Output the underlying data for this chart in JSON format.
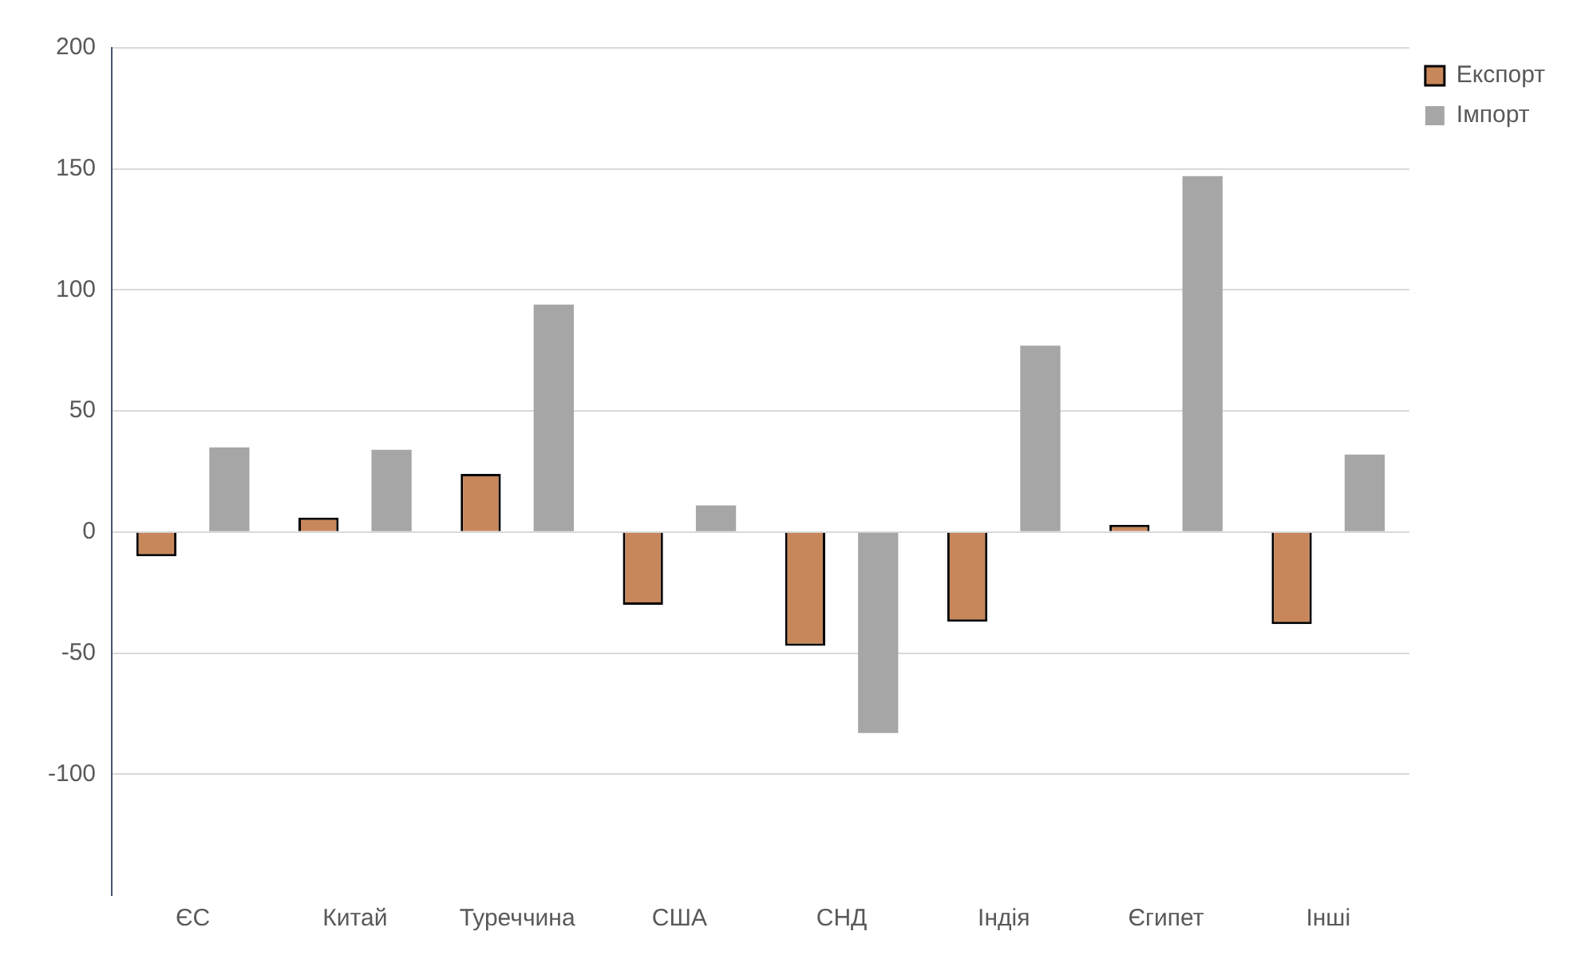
{
  "chart_data": {
    "type": "bar",
    "categories": [
      "ЄС",
      "Китай",
      "Туреччина",
      "США",
      "СНД",
      "Індія",
      "Єгипет",
      "Інші"
    ],
    "series": [
      {
        "name": "Експорт",
        "color": "#c8875a",
        "values": [
          -10,
          6,
          24,
          -30,
          -47,
          -37,
          3,
          -38
        ]
      },
      {
        "name": "Імпорт",
        "color": "#a6a6a6",
        "values": [
          35,
          34,
          94,
          11,
          -83,
          77,
          147,
          32
        ]
      }
    ],
    "ylim": [
      -150,
      200
    ],
    "yticks": [
      -100,
      -50,
      0,
      50,
      100,
      150,
      200
    ],
    "grid": "y",
    "legend": "top right"
  }
}
